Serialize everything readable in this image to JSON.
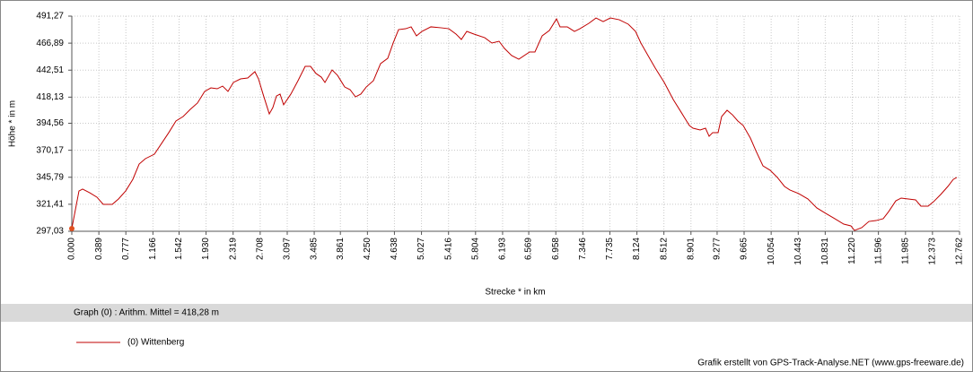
{
  "chart_data": {
    "type": "line",
    "ylabel": "Höhe *  in  m",
    "xlabel": "Strecke *  in  km",
    "annotation": "Graph (0) :  Arithm. Mittel = 418,28 m",
    "footer": "Grafik erstellt von GPS-Track-Analyse.NET (www.gps-freeware.de)",
    "grid": true,
    "xlim": [
      0,
      12.762
    ],
    "ylim": [
      297.03,
      491.27
    ],
    "xticks": [
      {
        "value": 0,
        "label": "0.000"
      },
      {
        "value": 0.389,
        "label": "0.389"
      },
      {
        "value": 0.777,
        "label": "0.777"
      },
      {
        "value": 1.166,
        "label": "1.166"
      },
      {
        "value": 1.542,
        "label": "1.542"
      },
      {
        "value": 1.93,
        "label": "1.930"
      },
      {
        "value": 2.319,
        "label": "2.319"
      },
      {
        "value": 2.708,
        "label": "2.708"
      },
      {
        "value": 3.097,
        "label": "3.097"
      },
      {
        "value": 3.485,
        "label": "3.485"
      },
      {
        "value": 3.861,
        "label": "3.861"
      },
      {
        "value": 4.25,
        "label": "4.250"
      },
      {
        "value": 4.638,
        "label": "4.638"
      },
      {
        "value": 5.027,
        "label": "5.027"
      },
      {
        "value": 5.416,
        "label": "5.416"
      },
      {
        "value": 5.804,
        "label": "5.804"
      },
      {
        "value": 6.193,
        "label": "6.193"
      },
      {
        "value": 6.569,
        "label": "6.569"
      },
      {
        "value": 6.958,
        "label": "6.958"
      },
      {
        "value": 7.346,
        "label": "7.346"
      },
      {
        "value": 7.735,
        "label": "7.735"
      },
      {
        "value": 8.124,
        "label": "8.124"
      },
      {
        "value": 8.512,
        "label": "8.512"
      },
      {
        "value": 8.901,
        "label": "8.901"
      },
      {
        "value": 9.277,
        "label": "9.277"
      },
      {
        "value": 9.665,
        "label": "9.665"
      },
      {
        "value": 10.054,
        "label": "10.054"
      },
      {
        "value": 10.443,
        "label": "10.443"
      },
      {
        "value": 10.831,
        "label": "10.831"
      },
      {
        "value": 11.22,
        "label": "11.220"
      },
      {
        "value": 11.596,
        "label": "11.596"
      },
      {
        "value": 11.985,
        "label": "11.985"
      },
      {
        "value": 12.373,
        "label": "12.373"
      },
      {
        "value": 12.762,
        "label": "12.762"
      }
    ],
    "yticks": [
      {
        "value": 297.03,
        "label": "297,03"
      },
      {
        "value": 321.41,
        "label": "321,41"
      },
      {
        "value": 345.79,
        "label": "345,79"
      },
      {
        "value": 370.17,
        "label": "370,17"
      },
      {
        "value": 394.56,
        "label": "394,56"
      },
      {
        "value": 418.13,
        "label": "418,13"
      },
      {
        "value": 442.51,
        "label": "442,51"
      },
      {
        "value": 466.89,
        "label": "466,89"
      },
      {
        "value": 491.27,
        "label": "491,27"
      }
    ],
    "x": [
      0.0,
      0.103,
      0.155,
      0.258,
      0.361,
      0.452,
      0.581,
      0.671,
      0.774,
      0.877,
      0.968,
      1.058,
      1.187,
      1.29,
      1.394,
      1.497,
      1.6,
      1.703,
      1.806,
      1.91,
      2.0,
      2.09,
      2.168,
      2.245,
      2.323,
      2.426,
      2.529,
      2.632,
      2.684,
      2.749,
      2.839,
      2.89,
      2.942,
      2.994,
      3.045,
      3.149,
      3.252,
      3.355,
      3.432,
      3.51,
      3.587,
      3.639,
      3.742,
      3.82,
      3.923,
      4.0,
      4.078,
      4.155,
      4.233,
      4.336,
      4.439,
      4.542,
      4.62,
      4.697,
      4.8,
      4.878,
      4.955,
      5.033,
      5.162,
      5.316,
      5.42,
      5.523,
      5.6,
      5.678,
      5.781,
      5.936,
      6.039,
      6.142,
      6.22,
      6.323,
      6.426,
      6.581,
      6.658,
      6.762,
      6.865,
      6.968,
      7.019,
      7.123,
      7.226,
      7.304,
      7.433,
      7.536,
      7.639,
      7.742,
      7.871,
      8.0,
      8.104,
      8.181,
      8.284,
      8.388,
      8.517,
      8.646,
      8.775,
      8.878,
      8.93,
      9.033,
      9.11,
      9.162,
      9.213,
      9.291,
      9.342,
      9.42,
      9.497,
      9.575,
      9.652,
      9.755,
      9.833,
      9.936,
      10.039,
      10.143,
      10.246,
      10.323,
      10.452,
      10.581,
      10.71,
      10.839,
      10.968,
      11.097,
      11.2,
      11.252,
      11.356,
      11.459,
      11.562,
      11.665,
      11.743,
      11.846,
      11.923,
      12.026,
      12.13,
      12.207,
      12.31,
      12.388,
      12.491,
      12.594,
      12.672,
      12.723
    ],
    "series": [
      {
        "name": "(0) Wittenberg",
        "color": "#c00000",
        "values": [
          299.5,
          333.4,
          335.1,
          331.8,
          327.8,
          321.3,
          321.3,
          326.2,
          333.4,
          343.9,
          357.7,
          362.6,
          366.6,
          376.3,
          386.1,
          396.6,
          400.6,
          407.1,
          412.8,
          423.3,
          426.5,
          425.7,
          428.1,
          423.3,
          431.4,
          434.6,
          435.4,
          441.1,
          434.6,
          420.9,
          403.0,
          408.7,
          419.2,
          420.9,
          411.2,
          420.9,
          433.0,
          445.9,
          445.9,
          439.5,
          436.2,
          431.4,
          442.7,
          437.8,
          427.3,
          424.9,
          418.4,
          420.9,
          427.3,
          433.0,
          448.4,
          453.2,
          467.0,
          479.1,
          479.9,
          481.6,
          473.5,
          477.5,
          481.6,
          480.7,
          479.9,
          475.1,
          470.2,
          477.5,
          475.1,
          471.8,
          467.0,
          468.6,
          462.1,
          455.7,
          452.4,
          458.9,
          458.9,
          473.5,
          478.3,
          488.8,
          481.6,
          481.6,
          477.5,
          479.9,
          484.8,
          489.6,
          486.4,
          489.6,
          488.0,
          484.0,
          477.5,
          467.0,
          455.7,
          444.3,
          431.4,
          416.0,
          403.0,
          392.5,
          390.1,
          388.5,
          390.1,
          382.8,
          386.1,
          386.1,
          400.6,
          406.3,
          402.2,
          396.6,
          392.5,
          381.2,
          369.9,
          356.1,
          352.1,
          345.6,
          337.5,
          334.3,
          331.0,
          326.2,
          318.1,
          313.2,
          308.4,
          303.5,
          301.9,
          297.8,
          300.3,
          305.9,
          306.7,
          308.4,
          314.8,
          324.5,
          327.0,
          326.2,
          325.4,
          319.7,
          319.7,
          323.7,
          330.2,
          337.5,
          343.9,
          345.6
        ]
      }
    ]
  }
}
